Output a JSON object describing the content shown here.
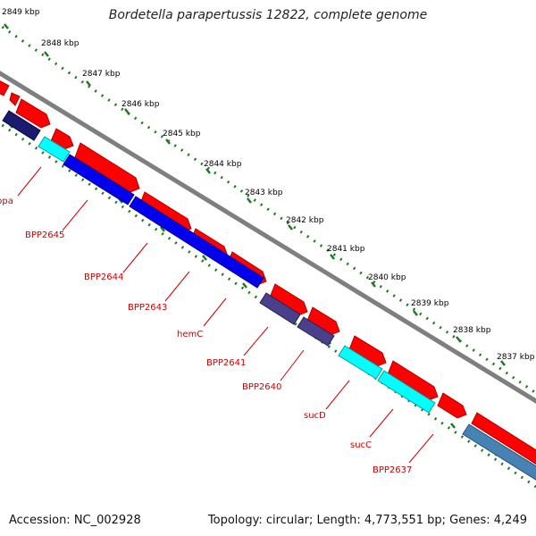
{
  "title": "Bordetella parapertussis 12822, complete genome",
  "accession_text": "Accession: NC_002928",
  "summary_text": "Topology: circular; Length: 4,773,551 bp; Genes: 4,249",
  "colors": {
    "backbone": "#808080",
    "feature_forward": "#ff0000",
    "feature_reverse": "#ff0000",
    "cds_blue": "#0000ee",
    "cds_navy": "#1a1a6e",
    "cds_cyan": "#00ffff",
    "cds_purple": "#4a3f8a",
    "cds_steel": "#4682b4",
    "ruler_tick": "#1e7a1e",
    "gene_label": "#cc0000"
  },
  "ruler": [
    {
      "label": "2849 kbp"
    },
    {
      "label": "2848 kbp"
    },
    {
      "label": "2847 kbp"
    },
    {
      "label": "2846 kbp"
    },
    {
      "label": "2845 kbp"
    },
    {
      "label": "2844 kbp"
    },
    {
      "label": "2843 kbp"
    },
    {
      "label": "2842 kbp"
    },
    {
      "label": "2841 kbp"
    },
    {
      "label": "2840 kbp"
    },
    {
      "label": "2839 kbp"
    },
    {
      "label": "2838 kbp"
    },
    {
      "label": "2837 kbp"
    }
  ],
  "gene_labels": [
    {
      "label": "ppa"
    },
    {
      "label": "BPP2645"
    },
    {
      "label": "BPP2644"
    },
    {
      "label": "BPP2643"
    },
    {
      "label": "hemC"
    },
    {
      "label": "BPP2641"
    },
    {
      "label": "BPP2640"
    },
    {
      "label": "sucD"
    },
    {
      "label": "sucC"
    },
    {
      "label": "BPP2637"
    }
  ]
}
